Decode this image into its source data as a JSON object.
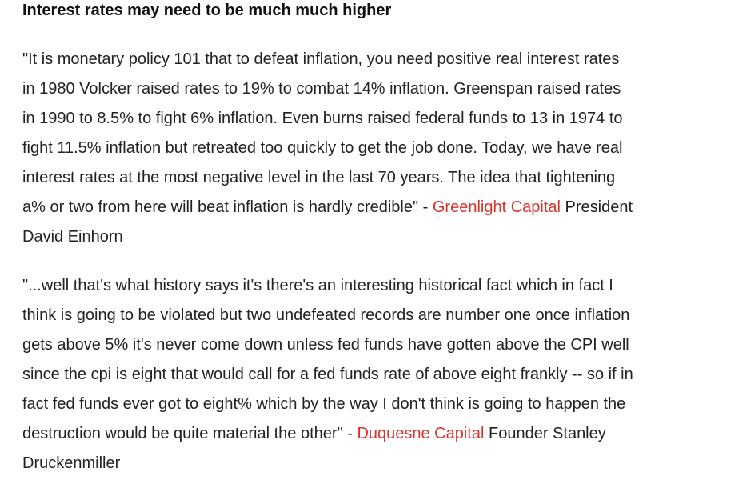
{
  "header": {
    "title": "Interest rates may need to be much much higher"
  },
  "paragraphs": [
    {
      "lines": [
        "\"It is monetary policy 101 that to defeat inflation, you need positive real interest rates",
        "in 1980 Volcker raised rates to 19% to combat 14% inflation. Greenspan raised rates",
        "in 1990 to 8.5% to fight 6% inflation. Even burns raised federal funds to 13 in 1974 to",
        "fight 11.5% inflation but retreated too quickly to get the job done. Today, we have real",
        "interest rates at the most negative level in the last 70 years. The idea that tightening"
      ],
      "attribution": {
        "before": "a% or two from here will beat inflation is hardly credible\" - ",
        "source": "Greenlight Capital",
        "after": " President"
      },
      "last_line": "David Einhorn"
    },
    {
      "lines": [
        "\"...well that's what history says it's there's an interesting historical fact which in fact I",
        "think is going to be violated but two undefeated records are number one once inflation",
        "gets above 5% it's never come down unless fed funds have gotten above the CPI well",
        "since the cpi is eight that would call for a fed funds rate of above eight frankly -- so if in",
        "fact fed funds ever got to eight% which by the way I don't think is going to happen the"
      ],
      "attribution": {
        "before": "destruction would be quite material the other\" - ",
        "source": "Duquesne Capital",
        "after": " Founder Stanley"
      },
      "last_line": "Druckenmiller"
    }
  ]
}
